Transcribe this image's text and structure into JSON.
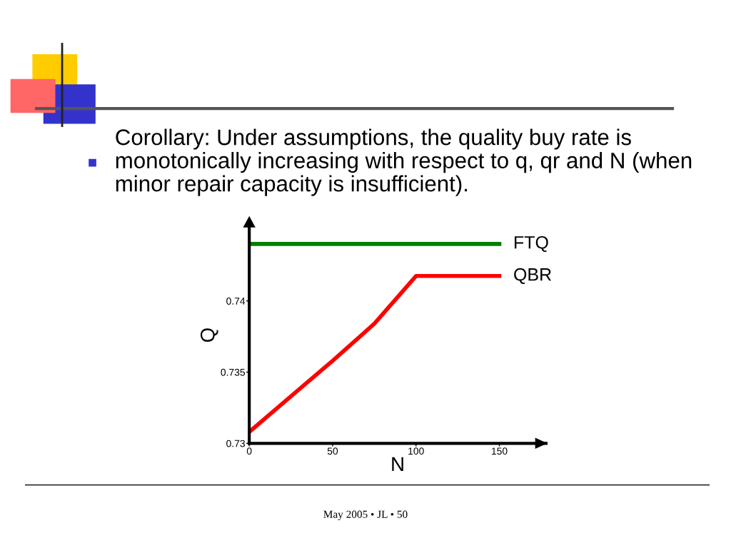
{
  "chart_data": {
    "type": "line",
    "title": "Corollary: Under assumptions, the quality buy rate is monotonically increasing with respect to q, qr and N (when minor repair capacity is insufficient).",
    "xlabel": "N",
    "ylabel": "Q",
    "series": [
      {
        "name": "FTQ",
        "color": "#008000",
        "x": [
          0,
          150
        ],
        "values": [
          0.744,
          0.744
        ]
      },
      {
        "name": "QBR",
        "color": "#ff0000",
        "x": [
          0,
          25,
          50,
          75,
          100,
          150
        ],
        "values": [
          0.7308,
          0.7333,
          0.7358,
          0.7384,
          0.74175,
          0.74175
        ]
      }
    ],
    "xlim": [
      0,
      178
    ],
    "xticks": [
      0,
      50,
      100,
      150
    ],
    "ylim": [
      0.73,
      0.7452
    ],
    "yticks": [
      0.73,
      0.735,
      0.74
    ],
    "grid": false,
    "legend": false,
    "marker": "none",
    "line_style": "solid",
    "annotations": [
      "May 2005 • JL • 50"
    ]
  }
}
